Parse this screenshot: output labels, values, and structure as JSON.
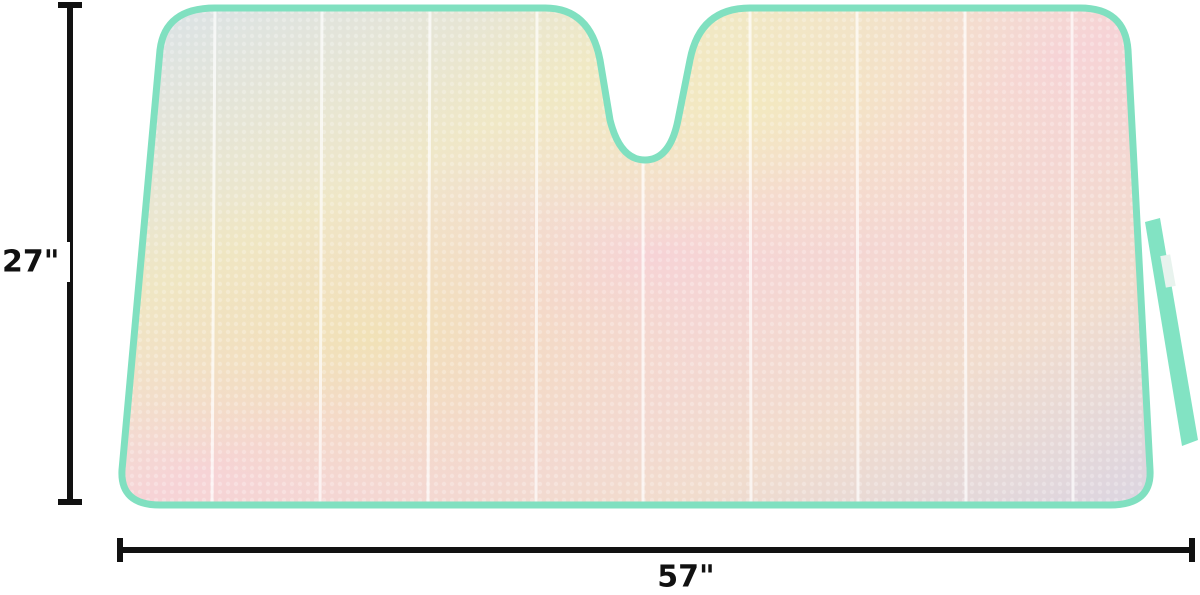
{
  "dimensions": {
    "height": "27\"",
    "width": "57\""
  }
}
